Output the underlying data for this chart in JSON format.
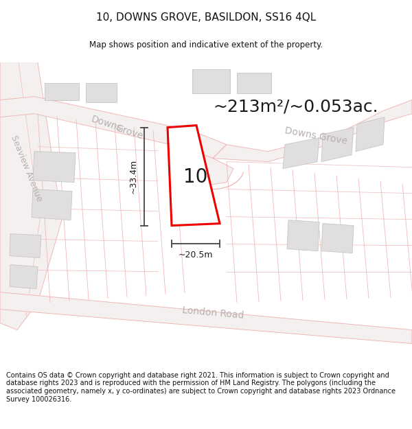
{
  "title": "10, DOWNS GROVE, BASILDON, SS16 4QL",
  "subtitle": "Map shows position and indicative extent of the property.",
  "footer": "Contains OS data © Crown copyright and database right 2021. This information is subject to Crown copyright and database rights 2023 and is reproduced with the permission of HM Land Registry. The polygons (including the associated geometry, namely x, y co-ordinates) are subject to Crown copyright and database rights 2023 Ordnance Survey 100026316.",
  "area_text": "~213m²/~0.053ac.",
  "house_number": "10",
  "dim_width": "~20.5m",
  "dim_height": "~33.4m",
  "bg_color": "#ffffff",
  "map_bg": "#f7f6f6",
  "road_edge_color": "#f0b8b8",
  "road_fill": "#f5f0f0",
  "plot_color": "#ee0000",
  "building_fill": "#e0dede",
  "building_edge": "#c8c4c4",
  "label_color": "#b8b0b0",
  "dim_color": "#444444",
  "title_fontsize": 11,
  "subtitle_fontsize": 8.5,
  "footer_fontsize": 7.0,
  "area_fontsize": 18,
  "house_fontsize": 20,
  "dim_fontsize": 9,
  "road_label_fontsize": 10
}
